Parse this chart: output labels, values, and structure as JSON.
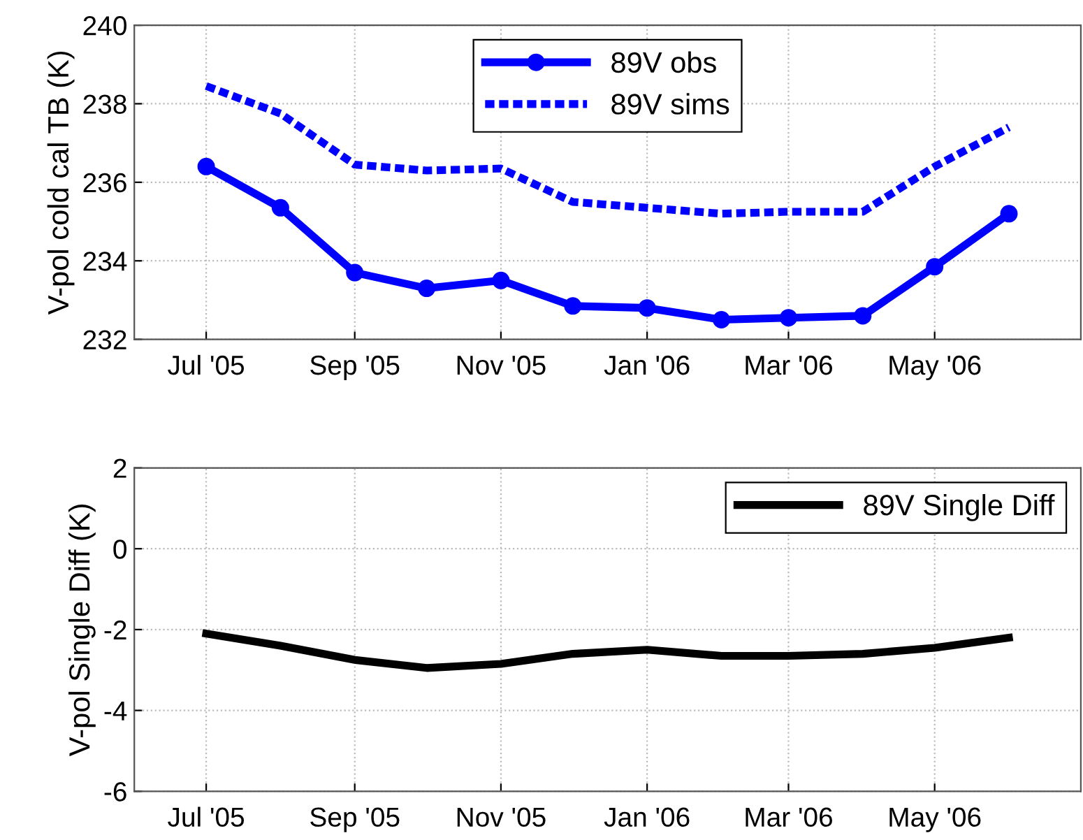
{
  "chart_data": [
    {
      "type": "line",
      "ylabel": "V-pol cold cal TB (K)",
      "x": [
        "2005-07-01",
        "2005-08-01",
        "2005-09-01",
        "2005-10-01",
        "2005-11-01",
        "2005-12-01",
        "2006-01-01",
        "2006-02-01",
        "2006-03-01",
        "2006-04-01",
        "2006-05-01",
        "2006-06-01"
      ],
      "series": [
        {
          "name": "89V obs",
          "color": "#0000ff",
          "marker": "circle",
          "line_style": "solid",
          "values": [
            236.4,
            235.35,
            233.7,
            233.3,
            233.5,
            232.85,
            232.8,
            232.5,
            232.55,
            232.6,
            233.85,
            235.2
          ]
        },
        {
          "name": "89V sims",
          "color": "#0000ff",
          "marker": "none",
          "line_style": "dotted",
          "values": [
            238.45,
            237.75,
            236.45,
            236.3,
            236.35,
            235.5,
            235.35,
            235.2,
            235.25,
            235.25,
            236.4,
            237.4
          ]
        }
      ],
      "xlim": [
        "2005-06-01",
        "2006-07-01"
      ],
      "xticks": [
        {
          "value": "2005-07-01",
          "label": "Jul '05"
        },
        {
          "value": "2005-09-01",
          "label": "Sep '05"
        },
        {
          "value": "2005-11-01",
          "label": "Nov '05"
        },
        {
          "value": "2006-01-01",
          "label": "Jan '06"
        },
        {
          "value": "2006-03-01",
          "label": "Mar '06"
        },
        {
          "value": "2006-05-01",
          "label": "May '06"
        }
      ],
      "ylim": [
        232,
        240
      ],
      "yticks": [
        232,
        234,
        236,
        238,
        240
      ],
      "grid": true,
      "legend": "top"
    },
    {
      "type": "line",
      "ylabel": "V-pol Single Diff (K)",
      "x": [
        "2005-07-01",
        "2005-08-01",
        "2005-09-01",
        "2005-10-01",
        "2005-11-01",
        "2005-12-01",
        "2006-01-01",
        "2006-02-01",
        "2006-03-01",
        "2006-04-01",
        "2006-05-01",
        "2006-06-01"
      ],
      "series": [
        {
          "name": "89V Single Diff",
          "color": "#000000",
          "marker": "none",
          "line_style": "solid",
          "values": [
            -2.1,
            -2.4,
            -2.75,
            -2.95,
            -2.85,
            -2.6,
            -2.5,
            -2.65,
            -2.65,
            -2.6,
            -2.45,
            -2.2
          ]
        }
      ],
      "xlim": [
        "2005-06-01",
        "2006-07-01"
      ],
      "xticks": [
        {
          "value": "2005-07-01",
          "label": "Jul '05"
        },
        {
          "value": "2005-09-01",
          "label": "Sep '05"
        },
        {
          "value": "2005-11-01",
          "label": "Nov '05"
        },
        {
          "value": "2006-01-01",
          "label": "Jan '06"
        },
        {
          "value": "2006-03-01",
          "label": "Mar '06"
        },
        {
          "value": "2006-05-01",
          "label": "May '06"
        }
      ],
      "ylim": [
        -6,
        2
      ],
      "yticks": [
        -6,
        -4,
        -2,
        0,
        2
      ],
      "grid": true,
      "legend": "top right"
    }
  ]
}
